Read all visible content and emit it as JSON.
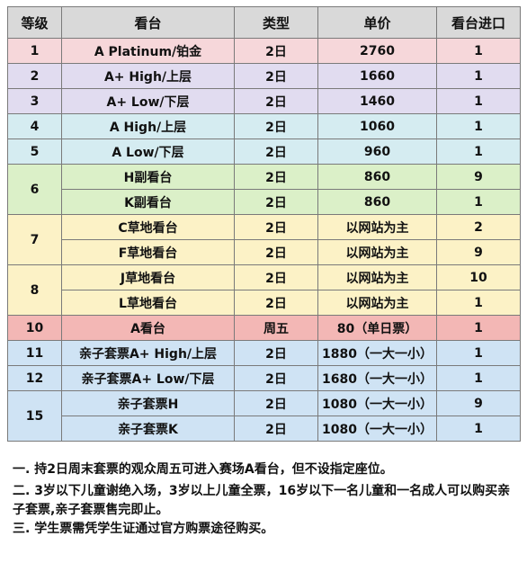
{
  "headers": [
    "等级",
    "看台",
    "类型",
    "单价",
    "看台进口"
  ],
  "rows": [
    {
      "grade": "1",
      "stand": "A Platinum/铂金",
      "type": "2日",
      "price": "2760",
      "gate": "1"
    },
    {
      "grade": "2",
      "stand": "A+ High/上层",
      "type": "2日",
      "price": "1660",
      "gate": "1"
    },
    {
      "grade": "3",
      "stand": "A+ Low/下层",
      "type": "2日",
      "price": "1460",
      "gate": "1"
    },
    {
      "grade": "4",
      "stand": "A High/上层",
      "type": "2日",
      "price": "1060",
      "gate": "1"
    },
    {
      "grade": "5",
      "stand": "A Low/下层",
      "type": "2日",
      "price": "960",
      "gate": "1"
    },
    {
      "grade": "6",
      "stand": "H副看台",
      "type": "2日",
      "price": "860",
      "gate": "9"
    },
    {
      "stand": "K副看台",
      "type": "2日",
      "price": "860",
      "gate": "1"
    },
    {
      "grade": "7",
      "stand": "C草地看台",
      "type": "2日",
      "price": "以网站为主",
      "gate": "2"
    },
    {
      "stand": "F草地看台",
      "type": "2日",
      "price": "以网站为主",
      "gate": "9"
    },
    {
      "grade": "8",
      "stand": "J草地看台",
      "type": "2日",
      "price": "以网站为主",
      "gate": "10"
    },
    {
      "stand": "L草地看台",
      "type": "2日",
      "price": "以网站为主",
      "gate": "1"
    },
    {
      "grade": "10",
      "stand": "A看台",
      "type": "周五",
      "price": "80（单日票）",
      "gate": "1"
    },
    {
      "grade": "11",
      "stand": "亲子套票A+ High/上层",
      "type": "2日",
      "price": "1880（一大一小）",
      "gate": "1"
    },
    {
      "grade": "12",
      "stand": "亲子套票A+ Low/下层",
      "type": "2日",
      "price": "1680（一大一小）",
      "gate": "1"
    },
    {
      "grade": "15",
      "stand": "亲子套票H",
      "type": "2日",
      "price": "1080（一大一小）",
      "gate": "9"
    },
    {
      "stand": "亲子套票K",
      "type": "2日",
      "price": "1080（一大一小）",
      "gate": "1"
    }
  ],
  "colors": {
    "header": "#d9d9d9",
    "pink": "#f6d7da",
    "lavender": "#e1dcf0",
    "cyan": "#d5ecf1",
    "green": "#dbf0c8",
    "yellow": "#fcf2c6",
    "salmon": "#f3b7b5",
    "blue": "#cfe3f4"
  },
  "notes": [
    "一. 持2日周末套票的观众周五可进入赛场A看台，但不设指定座位。",
    "二. 3岁以下儿童谢绝入场，3岁以上儿童全票，16岁以下一名儿童和一名成人可以购买亲子套票,亲子套票售完即止。",
    "三. 学生票需凭学生证通过官方购票途径购买。"
  ]
}
